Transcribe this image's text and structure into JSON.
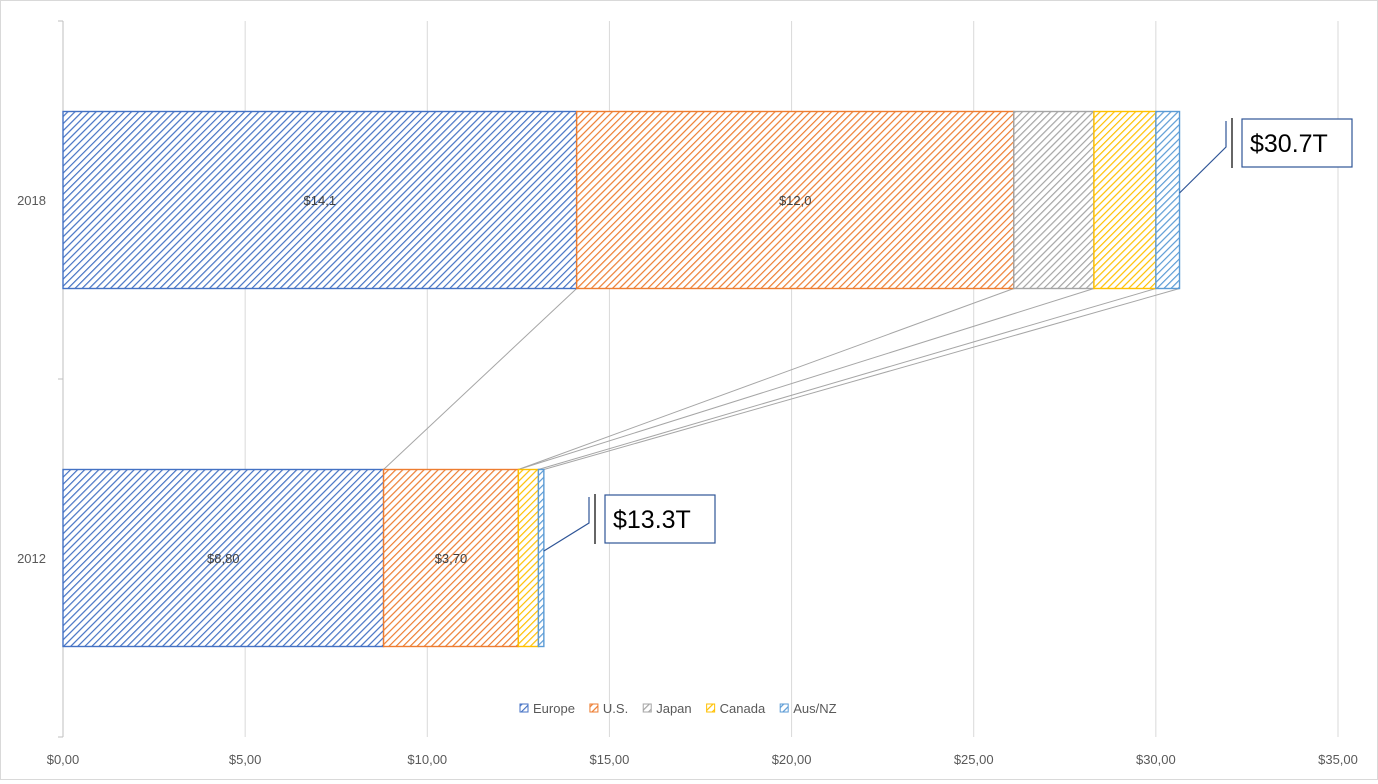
{
  "chart_data": {
    "type": "bar",
    "orientation": "horizontal",
    "stacked": true,
    "categories": [
      "2018",
      "2012"
    ],
    "series": [
      {
        "name": "Europe",
        "values": [
          14.1,
          8.8
        ],
        "color": "#4472c4",
        "data_labels": [
          "$14,1",
          "$8,80"
        ]
      },
      {
        "name": "U.S.",
        "values": [
          12.0,
          3.7
        ],
        "color": "#ed7d31",
        "data_labels": [
          "$12,0",
          "$3,70"
        ]
      },
      {
        "name": "Japan",
        "values": [
          2.2,
          0.0
        ],
        "color": "#a5a5a5",
        "data_labels": [
          "",
          ""
        ]
      },
      {
        "name": "Canada",
        "values": [
          1.7,
          0.55
        ],
        "color": "#ffc000",
        "data_labels": [
          "",
          ""
        ]
      },
      {
        "name": "Aus/NZ",
        "values": [
          0.65,
          0.15
        ],
        "color": "#5b9bd5",
        "data_labels": [
          "",
          ""
        ]
      }
    ],
    "totals": [
      {
        "category": "2018",
        "label": "$30.7T"
      },
      {
        "category": "2012",
        "label": "$13.3T"
      }
    ],
    "xlim": [
      0,
      35
    ],
    "x_ticks": [
      0,
      5,
      10,
      15,
      20,
      25,
      30,
      35
    ],
    "x_tick_labels": [
      "$0,00",
      "$5,00",
      "$10,00",
      "$15,00",
      "$20,00",
      "$25,00",
      "$30,00",
      "$35,00"
    ],
    "grid": true,
    "legend_position": "bottom",
    "title": "",
    "xlabel": "",
    "ylabel": ""
  }
}
